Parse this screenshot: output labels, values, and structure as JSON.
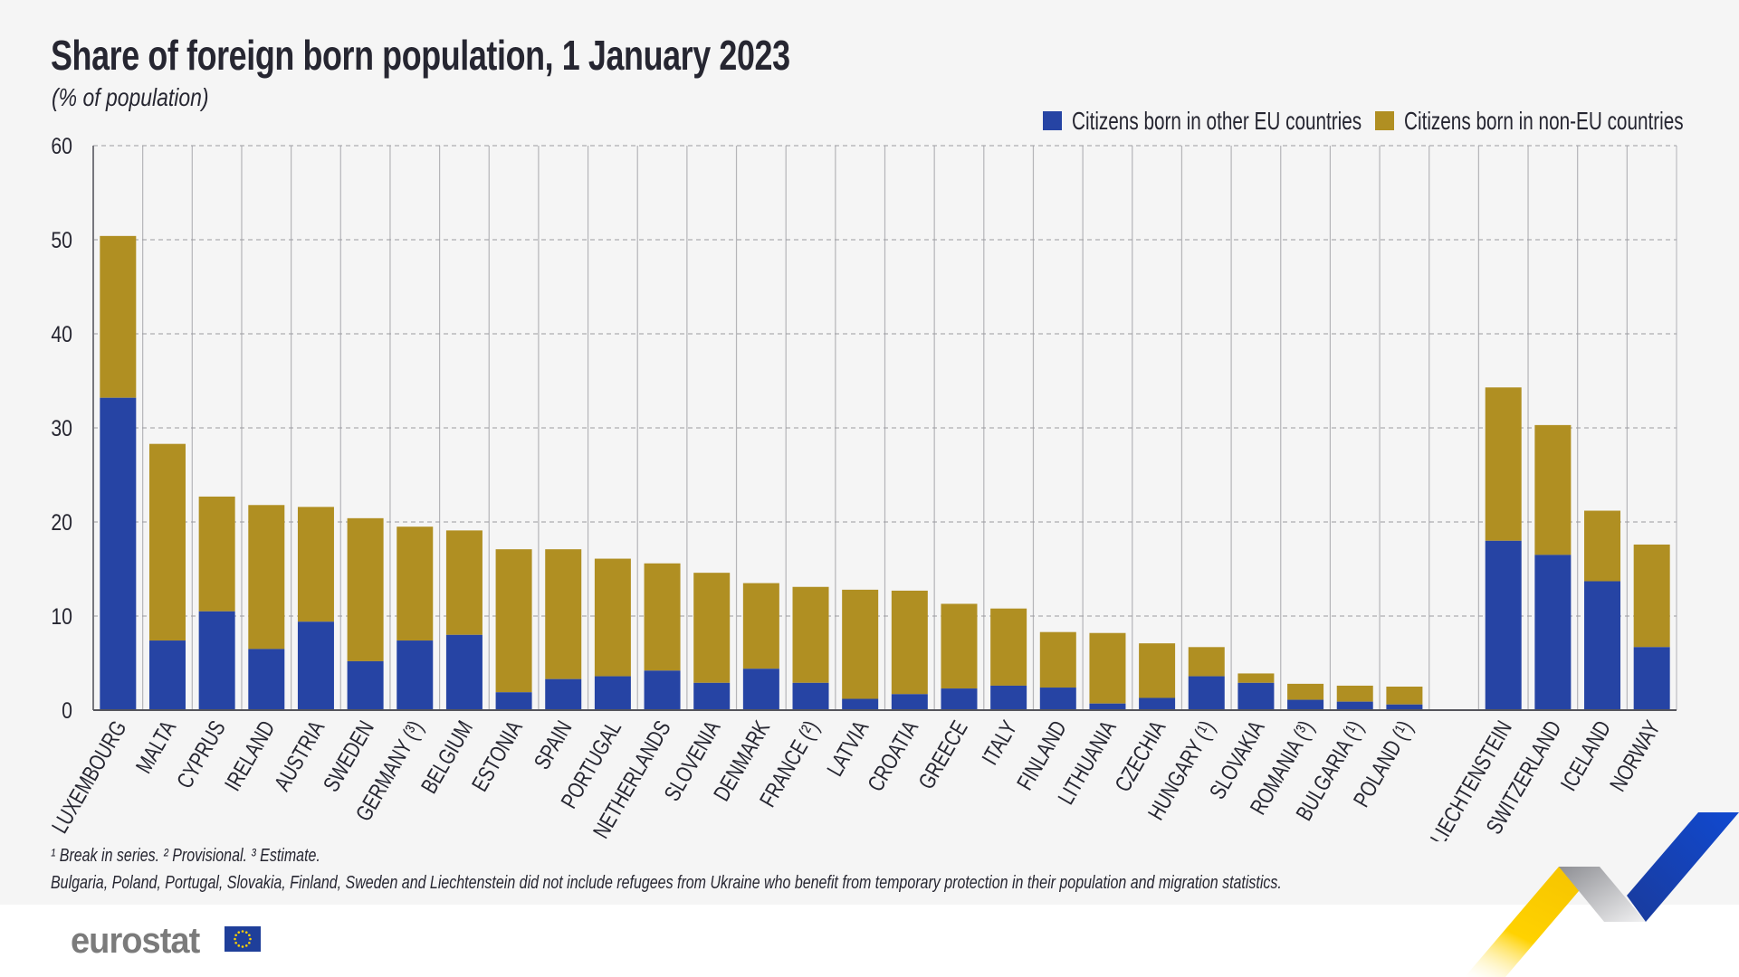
{
  "header": {
    "title": "Share of foreign born population, 1 January 2023",
    "subtitle": "(% of population)"
  },
  "legend": [
    {
      "label": "Citizens born in other EU countries",
      "color": "#2644A4"
    },
    {
      "label": "Citizens born in non-EU countries",
      "color": "#B08F22"
    }
  ],
  "chart_data": {
    "type": "bar",
    "stacked": true,
    "title": "Share of foreign born population, 1 January 2023",
    "subtitle": "(% of population)",
    "xlabel": "",
    "ylabel": "",
    "ylim": [
      0,
      60
    ],
    "yticks": [
      0,
      10,
      20,
      30,
      40,
      50,
      60
    ],
    "grid": true,
    "legend_position": "top-right",
    "categories": [
      "LUXEMBOURG",
      "MALTA",
      "CYPRUS",
      "IRELAND",
      "AUSTRIA",
      "SWEDEN",
      "GERMANY (³)",
      "BELGIUM",
      "ESTONIA",
      "SPAIN",
      "PORTUGAL",
      "NETHERLANDS",
      "SLOVENIA",
      "DENMARK",
      "FRANCE (²)",
      "LATVIA",
      "CROATIA",
      "GREECE",
      "ITALY",
      "FINLAND",
      "LITHUANIA",
      "CZECHIA",
      "HUNGARY (¹)",
      "SLOVAKIA",
      "ROMANIA (³)",
      "BULGARIA (¹)",
      "POLAND (¹)",
      "",
      "LIECHTENSTEIN",
      "SWITZERLAND",
      "ICELAND",
      "NORWAY"
    ],
    "series": [
      {
        "name": "Citizens born in other EU countries",
        "color": "#2644A4",
        "values": [
          33.2,
          7.4,
          10.5,
          6.5,
          9.4,
          5.2,
          7.4,
          8.0,
          1.9,
          3.3,
          3.6,
          4.2,
          2.9,
          4.4,
          2.9,
          1.2,
          1.7,
          2.3,
          2.6,
          2.4,
          0.7,
          1.3,
          3.6,
          2.9,
          1.1,
          0.9,
          0.6,
          null,
          18.0,
          16.5,
          13.7,
          6.7
        ]
      },
      {
        "name": "Citizens born in non-EU countries",
        "color": "#B08F22",
        "values": [
          17.2,
          20.9,
          12.2,
          15.3,
          12.2,
          15.2,
          12.1,
          11.1,
          15.2,
          13.8,
          12.5,
          11.4,
          11.7,
          9.1,
          10.2,
          11.6,
          11.0,
          9.0,
          8.2,
          5.9,
          7.5,
          5.8,
          3.1,
          1.0,
          1.7,
          1.7,
          1.9,
          null,
          16.3,
          13.8,
          7.5,
          10.9
        ]
      }
    ]
  },
  "footnotes": [
    "¹ Break in series. ² Provisional. ³ Estimate.",
    "Bulgaria, Poland, Portugal, Slovakia, Finland, Sweden and Liechtenstein did not include refugees from Ukraine who benefit from temporary protection in their population and migration statistics."
  ],
  "logo": {
    "text": "eurostat",
    "flag_icon": "eu-flag-icon"
  }
}
